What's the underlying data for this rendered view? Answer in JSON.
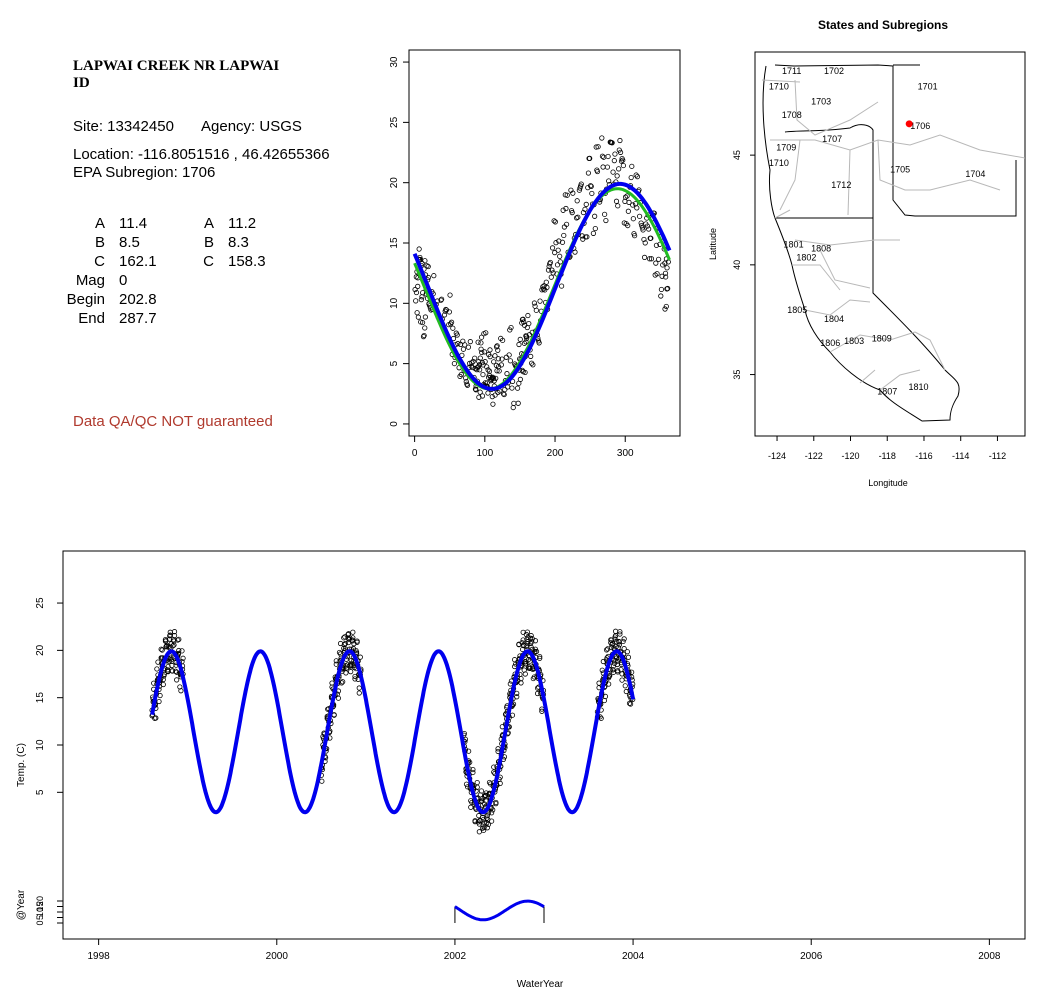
{
  "info_panel": {
    "station_name_line1": "LAPWAI CREEK NR LAPWAI",
    "station_name_line2": "ID",
    "site_label": "Site: 13342450",
    "agency_label": "Agency: USGS",
    "location_label": "Location: -116.8051516 , 46.42655366",
    "subregion_label": "EPA Subregion: 1706",
    "params_left": [
      {
        "label": "A",
        "value": "11.4"
      },
      {
        "label": "B",
        "value": "8.5"
      },
      {
        "label": "C",
        "value": "162.1"
      },
      {
        "label": "Mag",
        "value": "0"
      },
      {
        "label": "Begin",
        "value": "202.8"
      },
      {
        "label": "End",
        "value": "287.7"
      }
    ],
    "params_right": [
      {
        "label": "A",
        "value": "11.2"
      },
      {
        "label": "B",
        "value": "8.3"
      },
      {
        "label": "C",
        "value": "158.3"
      }
    ],
    "disclaimer": "Data QA/QC NOT guaranteed",
    "disclaimer_color": "#b03a2e"
  },
  "chart_data": [
    {
      "id": "annual-cycle",
      "type": "scatter",
      "title": "",
      "xlabel": "",
      "ylabel": "",
      "xlim": [
        -8,
        378
      ],
      "ylim": [
        -1,
        31
      ],
      "x_ticks": [
        0,
        100,
        200,
        300
      ],
      "y_ticks": [
        0,
        5,
        10,
        15,
        20,
        25,
        30
      ],
      "grid": false,
      "fits": [
        {
          "color": "#22bb22",
          "width": 3,
          "A": 11.2,
          "B": 8.3,
          "C": 158.3
        },
        {
          "color": "#0000ee",
          "width": 4,
          "A": 11.4,
          "B": 8.5,
          "C": 162.1
        }
      ],
      "points": {
        "marker": "open-circle",
        "color": "#000000",
        "note_values": "daily temperatures (C) vs day of water year; sampled representation",
        "days": [
          2,
          4,
          6,
          8,
          10,
          12,
          14,
          16,
          18,
          20,
          22,
          26,
          32,
          38,
          44,
          50,
          54,
          58,
          62,
          66,
          70,
          74,
          78,
          82,
          86,
          88,
          90,
          92,
          94,
          96,
          98,
          100,
          102,
          104,
          106,
          108,
          110,
          112,
          114,
          116,
          118,
          120,
          124,
          128,
          132,
          136,
          140,
          144,
          148,
          150,
          152,
          154,
          156,
          158,
          160,
          164,
          168,
          172,
          176,
          180,
          184,
          188,
          192,
          196,
          200,
          204,
          208,
          212,
          216,
          220,
          224,
          228,
          232,
          236,
          240,
          244,
          248,
          252,
          256,
          260,
          264,
          268,
          272,
          276,
          280,
          284,
          288,
          292,
          296,
          300,
          304,
          308,
          312,
          316,
          320,
          324,
          328,
          332,
          336,
          340,
          344,
          348,
          352,
          356,
          358,
          360
        ],
        "temps": [
          11.5,
          10.2,
          13.1,
          12.4,
          9.8,
          11.9,
          8.6,
          12.3,
          11.8,
          11.2,
          10.4,
          10.9,
          9.6,
          9.2,
          8.1,
          9.4,
          7.1,
          6.4,
          6.0,
          5.2,
          5.8,
          4.6,
          5.9,
          4.9,
          4.1,
          2.3,
          5.4,
          3.6,
          5.8,
          4.8,
          3.7,
          6.2,
          4.5,
          3.9,
          5.0,
          4.2,
          3.4,
          2.8,
          4.3,
          3.5,
          5.1,
          4.0,
          5.7,
          3.8,
          4.4,
          6.6,
          2.4,
          5.2,
          3.1,
          6.1,
          4.5,
          7.3,
          5.6,
          6.8,
          8.2,
          7.0,
          6.2,
          9.1,
          8.0,
          9.9,
          11.3,
          10.5,
          12.0,
          13.2,
          15.6,
          13.8,
          12.5,
          16.4,
          17.8,
          15.2,
          18.7,
          14.9,
          17.1,
          19.0,
          16.3,
          16.8,
          20.8,
          18.4,
          17.2,
          21.6,
          19.8,
          22.7,
          18.1,
          20.9,
          23.4,
          21.2,
          19.4,
          22.1,
          20.6,
          18.0,
          17.5,
          21.0,
          16.9,
          19.3,
          18.5,
          17.1,
          15.2,
          16.8,
          14.3,
          16.1,
          13.5,
          15.0,
          12.0,
          13.8,
          10.8,
          12.6
        ]
      }
    },
    {
      "id": "subregion-map",
      "type": "map",
      "title": "States and Subregions",
      "xlabel": "Longitude",
      "ylabel": "Latitude",
      "xlim": [
        -125.2,
        -110.5
      ],
      "ylim": [
        32.2,
        49.7
      ],
      "x_ticks": [
        -124,
        -122,
        -120,
        -118,
        -116,
        -114,
        -112
      ],
      "y_ticks": [
        35,
        40,
        45
      ],
      "site_point": {
        "lon": -116.8051516,
        "lat": 46.42655366,
        "color": "#ff0000"
      },
      "region_labels": [
        {
          "text": "1711",
          "lon": -123.2,
          "lat": 48.7
        },
        {
          "text": "1710",
          "lon": -123.9,
          "lat": 48.0
        },
        {
          "text": "1702",
          "lon": -120.9,
          "lat": 48.7
        },
        {
          "text": "1701",
          "lon": -115.8,
          "lat": 48.0
        },
        {
          "text": "1703",
          "lon": -121.6,
          "lat": 47.3
        },
        {
          "text": "1708",
          "lon": -123.2,
          "lat": 46.7
        },
        {
          "text": "1706",
          "lon": -116.2,
          "lat": 46.2
        },
        {
          "text": "1707",
          "lon": -121.0,
          "lat": 45.6
        },
        {
          "text": "1709",
          "lon": -123.5,
          "lat": 45.2
        },
        {
          "text": "1710",
          "lon": -123.9,
          "lat": 44.5
        },
        {
          "text": "1705",
          "lon": -117.3,
          "lat": 44.2
        },
        {
          "text": "1704",
          "lon": -113.2,
          "lat": 44.0
        },
        {
          "text": "1712",
          "lon": -120.5,
          "lat": 43.5
        },
        {
          "text": "1801",
          "lon": -123.1,
          "lat": 40.8
        },
        {
          "text": "1808",
          "lon": -121.6,
          "lat": 40.6
        },
        {
          "text": "1802",
          "lon": -122.4,
          "lat": 40.2
        },
        {
          "text": "1805",
          "lon": -122.9,
          "lat": 37.8
        },
        {
          "text": "1804",
          "lon": -120.9,
          "lat": 37.4
        },
        {
          "text": "1806",
          "lon": -121.1,
          "lat": 36.3
        },
        {
          "text": "1803",
          "lon": -119.8,
          "lat": 36.4
        },
        {
          "text": "1809",
          "lon": -118.3,
          "lat": 36.5
        },
        {
          "text": "1810",
          "lon": -116.3,
          "lat": 34.3
        },
        {
          "text": "1807",
          "lon": -118.0,
          "lat": 34.1
        }
      ]
    },
    {
      "id": "time-series",
      "type": "line",
      "title": "",
      "xlabel": "WaterYear",
      "ylabel": "Temp. (C)",
      "ylabel_lower": "@Year",
      "xlim": [
        1997.6,
        2008.4
      ],
      "ylim": [
        -10.5,
        30.5
      ],
      "x_ticks": [
        1998,
        2000,
        2002,
        2004,
        2006,
        2008
      ],
      "y_ticks_upper": [
        5,
        10,
        15,
        20,
        25
      ],
      "y_ticks_lower": [
        0,
        5,
        10,
        15,
        20
      ],
      "fit_line": {
        "color": "#0000ee",
        "start": 1998.6,
        "end": 2004.0,
        "mean": 11.4,
        "amplitude": 8.5,
        "peak_frac": 0.16
      },
      "obs_segments": [
        {
          "start": 1998.6,
          "end": 1998.95
        },
        {
          "start": 2000.5,
          "end": 2000.95
        },
        {
          "start": 2002.1,
          "end": 2003.0
        },
        {
          "start": 2003.6,
          "end": 2004.0
        }
      ],
      "sub_curve": {
        "start": 2002.0,
        "end": 2003.0,
        "color": "#0000ee",
        "note": "single-year fit in lower @Year panel"
      }
    }
  ]
}
